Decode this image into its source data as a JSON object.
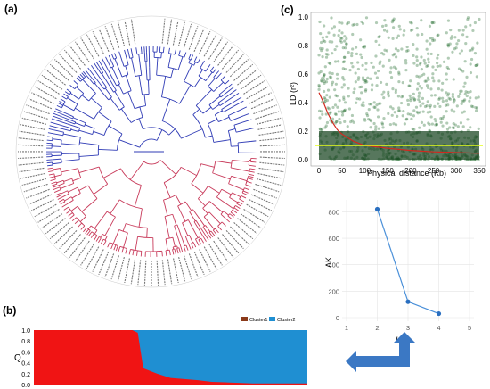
{
  "panels": {
    "a": "(a)",
    "b": "(b)",
    "c": "(c)"
  },
  "colors": {
    "tree_cluster_blue": "#2f3bb5",
    "tree_cluster_red": "#c83a5a",
    "ld_points": "#1f6b2a",
    "ld_decay_curve": "#d2281e",
    "ld_threshold_line": "#e6ff1a",
    "cluster1": "#f01414",
    "cluster2": "#1f8fd2",
    "deltak_line": "#4a90d9",
    "arrow": "#3b78c4"
  },
  "chart_data": [
    {
      "id": "tree",
      "type": "other",
      "description_kind": "circular phylogenetic tree",
      "clusters": [
        {
          "color": "#2f3bb5"
        },
        {
          "color": "#c83a5a"
        }
      ]
    },
    {
      "id": "structure",
      "type": "area",
      "ylabel": "Q",
      "yticks": [
        "0.0",
        "0.2",
        "0.4",
        "0.6",
        "0.8",
        "1.0"
      ],
      "ylim": [
        0,
        1
      ],
      "series": [
        {
          "name": "Cluster1",
          "color": "#8B3A1A"
        },
        {
          "name": "Cluster2",
          "color": "#1F8FD2"
        }
      ],
      "cluster1_fraction_by_individual_position": [
        [
          0.0,
          1.0
        ],
        [
          0.1,
          1.0
        ],
        [
          0.2,
          1.0
        ],
        [
          0.3,
          1.0
        ],
        [
          0.36,
          1.0
        ],
        [
          0.38,
          0.95
        ],
        [
          0.4,
          0.3
        ],
        [
          0.45,
          0.2
        ],
        [
          0.5,
          0.12
        ],
        [
          0.55,
          0.1
        ],
        [
          0.6,
          0.08
        ],
        [
          0.65,
          0.05
        ],
        [
          0.7,
          0.04
        ],
        [
          0.75,
          0.03
        ],
        [
          0.8,
          0.02
        ],
        [
          0.85,
          0.02
        ],
        [
          0.9,
          0.02
        ],
        [
          0.95,
          0.02
        ],
        [
          1.0,
          0.02
        ]
      ],
      "legend_position": "top-right"
    },
    {
      "id": "ld",
      "type": "scatter",
      "xlabel": "Physical distance (Kb)",
      "ylabel": "LD (r²)",
      "xlim": [
        0,
        350
      ],
      "ylim": [
        0,
        1
      ],
      "xticks": [
        "0",
        "50",
        "100",
        "150",
        "200",
        "250",
        "300",
        "350"
      ],
      "yticks": [
        "0.0",
        "0.2",
        "0.4",
        "0.6",
        "0.8",
        "1.0"
      ],
      "decay_curve": {
        "x": [
          0,
          10,
          20,
          30,
          40,
          50,
          75,
          100,
          150,
          200,
          250,
          300,
          350
        ],
        "y": [
          0.47,
          0.4,
          0.32,
          0.26,
          0.21,
          0.18,
          0.13,
          0.1,
          0.08,
          0.065,
          0.055,
          0.05,
          0.045
        ]
      },
      "threshold_y": 0.1
    },
    {
      "id": "deltak",
      "type": "line",
      "xlabel": "K",
      "ylabel": "ΔK",
      "xlim": [
        1,
        5
      ],
      "ylim": [
        0,
        850
      ],
      "xticks": [
        "1",
        "2",
        "3",
        "4",
        "5"
      ],
      "yticks": [
        "0",
        "200",
        "400",
        "600",
        "800"
      ],
      "series": [
        {
          "x": [
            2,
            3,
            4
          ],
          "y": [
            820,
            120,
            30
          ]
        }
      ]
    }
  ]
}
